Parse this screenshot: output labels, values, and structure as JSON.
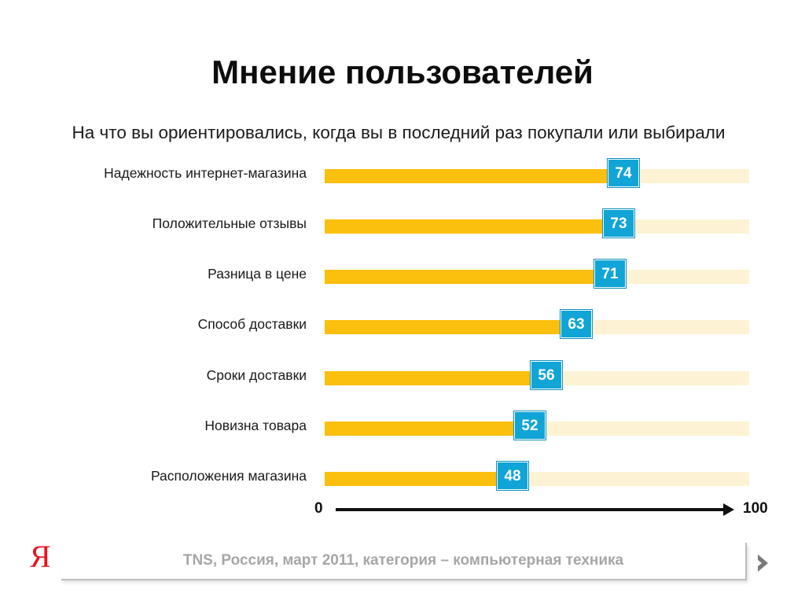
{
  "slide": {
    "title": "Мнение пользователей",
    "subtitle": "На что вы ориентировались, когда вы в последний раз покупали или выбирали",
    "footer": "TNS, Россия, март 2011, категория – компьютерная техника",
    "logo": "Я"
  },
  "colors": {
    "bar_fill": "#fbbf0e",
    "bar_track": "#fdf3d4",
    "badge": "#10a5d6",
    "logo": "#e4121b",
    "footer_text": "#a6a6a6"
  },
  "icons": {
    "logo": "yandex-logo-icon",
    "next": "chevron-right-icon"
  },
  "chart_data": {
    "type": "bar",
    "orientation": "horizontal",
    "title": "Мнение пользователей",
    "subtitle": "На что вы ориентировались, когда вы в последний раз покупали или выбирали",
    "categories": [
      "Надежность интернет-магазина",
      "Положительные отзывы",
      "Разница в цене",
      "Способ доставки",
      "Сроки доставки",
      "Новизна товара",
      "Расположения магазина"
    ],
    "values": [
      74,
      73,
      71,
      63,
      56,
      52,
      48
    ],
    "xlim": [
      0,
      100
    ],
    "axis_labels": {
      "min": "0",
      "max": "100"
    },
    "data_labels": true,
    "grid": false,
    "legend": "none"
  }
}
